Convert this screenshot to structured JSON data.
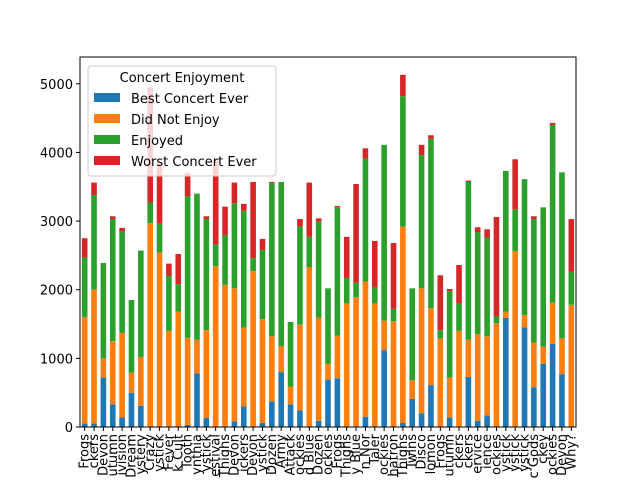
{
  "chart_data": {
    "type": "stacked_bar",
    "legend_title": "Concert Enjoyment",
    "legend": "upper left",
    "categories": [
      "Frogs",
      "ckers",
      "Devon",
      "utumn",
      "ivision",
      "Dream",
      "ystery",
      "Crazy",
      "ystick",
      "Fever",
      "k Cult",
      "Tooth",
      "ynthia",
      "ystick",
      "estival",
      "Thighs",
      "Devon",
      "ickers",
      "Devon",
      "ystick",
      "Dozen",
      "Army",
      "Attack",
      "ockies",
      "d Blue",
      "Dozen",
      "ockies",
      "Frogs",
      "Thighs",
      "y Blue",
      "n Nor",
      "Taler",
      "ockies",
      "hatron",
      "Thighs",
      "Twins",
      "Disco",
      "lomon",
      "Frogs",
      "utumn",
      "ckers",
      "ckers",
      "ervice",
      "ience",
      "ockies",
      "ystick",
      "ystick",
      "ystick",
      "c Gods",
      "ckey",
      "ockies",
      "Devon",
      "Why?"
    ],
    "series": [
      {
        "name": "Best Concert Ever",
        "color": "#1f77b4",
        "values": [
          50,
          50,
          720,
          330,
          140,
          500,
          310,
          0,
          0,
          0,
          0,
          30,
          780,
          130,
          0,
          0,
          80,
          300,
          0,
          60,
          370,
          800,
          330,
          240,
          0,
          90,
          690,
          710,
          0,
          0,
          150,
          0,
          1120,
          0,
          60,
          410,
          200,
          610,
          0,
          140,
          0,
          730,
          90,
          170,
          0,
          1590,
          0,
          1450,
          580,
          920,
          1210,
          770,
          0
        ]
      },
      {
        "name": "Did Not Enjoy",
        "color": "#ff7f0e",
        "values": [
          1550,
          1950,
          280,
          920,
          1230,
          290,
          710,
          2970,
          2540,
          1400,
          1680,
          1270,
          490,
          1280,
          2340,
          2070,
          1940,
          1150,
          2270,
          1510,
          950,
          380,
          260,
          1250,
          2330,
          1500,
          230,
          620,
          1800,
          1890,
          1970,
          1800,
          430,
          1540,
          2860,
          270,
          1820,
          1120,
          1290,
          580,
          1400,
          540,
          1260,
          1150,
          1510,
          90,
          2560,
          180,
          650,
          250,
          600,
          520,
          1780
        ]
      },
      {
        "name": "Enjoyed",
        "color": "#2ca02c",
        "values": [
          870,
          1380,
          1390,
          1780,
          1480,
          1060,
          1550,
          300,
          420,
          800,
          400,
          2060,
          2130,
          1620,
          320,
          720,
          1240,
          1700,
          190,
          1010,
          2230,
          2390,
          940,
          1430,
          440,
          1400,
          1100,
          1870,
          370,
          210,
          1790,
          240,
          2560,
          180,
          1900,
          1340,
          1940,
          2470,
          120,
          1260,
          400,
          2300,
          1490,
          1440,
          100,
          2050,
          610,
          1980,
          1800,
          2030,
          2590,
          2420,
          480
        ]
      },
      {
        "name": "Worst Concert Ever",
        "color": "#d62728",
        "values": [
          280,
          180,
          0,
          40,
          50,
          0,
          0,
          1680,
          900,
          180,
          440,
          340,
          0,
          40,
          1220,
          420,
          300,
          100,
          1110,
          160,
          20,
          0,
          0,
          110,
          790,
          50,
          0,
          20,
          600,
          1440,
          150,
          670,
          0,
          960,
          310,
          0,
          150,
          50,
          800,
          30,
          560,
          20,
          70,
          120,
          1450,
          0,
          730,
          0,
          40,
          0,
          30,
          0,
          770
        ]
      }
    ],
    "ylim": [
      0,
      5390
    ],
    "yticks": [
      0,
      1000,
      2000,
      3000,
      4000,
      5000
    ]
  }
}
